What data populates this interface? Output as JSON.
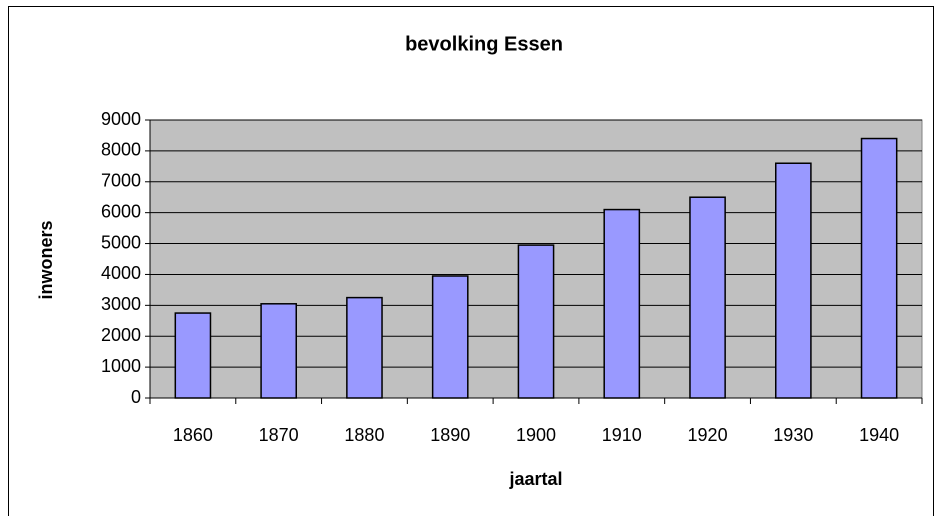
{
  "chart_data": {
    "type": "bar",
    "title": "bevolking Essen",
    "x_label": "jaartal",
    "y_label": "inwoners",
    "categories": [
      "1860",
      "1870",
      "1880",
      "1890",
      "1900",
      "1910",
      "1920",
      "1930",
      "1940"
    ],
    "values": [
      2750,
      3050,
      3250,
      3950,
      4950,
      6100,
      6500,
      7600,
      8400
    ],
    "color": "#9999ff",
    "plot_background": "#c0c0c0",
    "ylim": [
      0,
      9000
    ],
    "yticks": [
      0,
      1000,
      2000,
      3000,
      4000,
      5000,
      6000,
      7000,
      8000,
      9000
    ],
    "grid": true
  }
}
